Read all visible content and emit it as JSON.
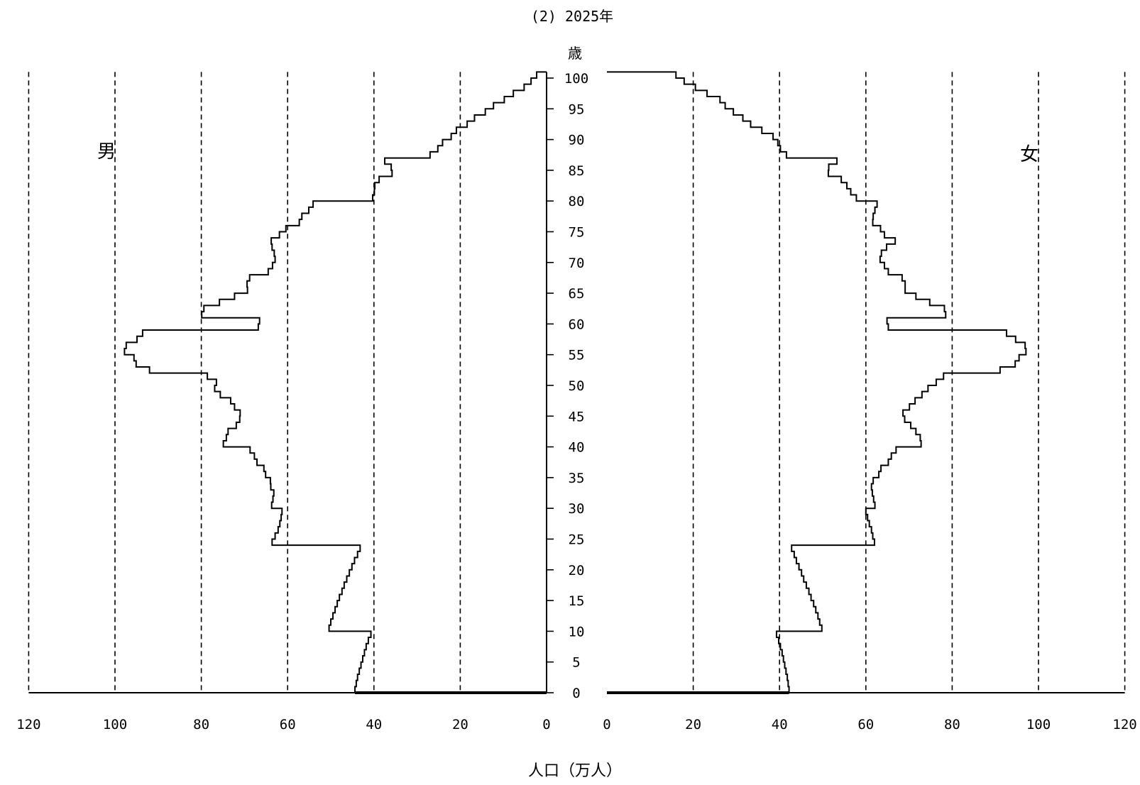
{
  "chart_data": {
    "type": "population-pyramid",
    "title": "(2) 2025年",
    "y_unit_label": "歳",
    "xlabel": "人口（万人）",
    "male_label": "男",
    "female_label": "女",
    "x_range": [
      0,
      120
    ],
    "x_ticks": [
      0,
      20,
      40,
      60,
      80,
      100,
      120
    ],
    "gridlines": [
      20,
      40,
      60,
      80,
      100,
      120
    ],
    "age_range": [
      0,
      101
    ],
    "age_ticks": [
      0,
      5,
      10,
      15,
      20,
      25,
      30,
      35,
      40,
      45,
      50,
      55,
      60,
      65,
      70,
      75,
      80,
      85,
      90,
      95,
      100
    ],
    "ages": [
      0,
      1,
      2,
      3,
      4,
      5,
      6,
      7,
      8,
      9,
      10,
      11,
      12,
      13,
      14,
      15,
      16,
      17,
      18,
      19,
      20,
      21,
      22,
      23,
      24,
      25,
      26,
      27,
      28,
      29,
      30,
      31,
      32,
      33,
      34,
      35,
      36,
      37,
      38,
      39,
      40,
      41,
      42,
      43,
      44,
      45,
      46,
      47,
      48,
      49,
      50,
      51,
      52,
      53,
      54,
      55,
      56,
      57,
      58,
      59,
      60,
      61,
      62,
      63,
      64,
      65,
      66,
      67,
      68,
      69,
      70,
      71,
      72,
      73,
      74,
      75,
      76,
      77,
      78,
      79,
      80,
      81,
      82,
      83,
      84,
      85,
      86,
      87,
      88,
      89,
      90,
      91,
      92,
      93,
      94,
      95,
      96,
      97,
      98,
      99,
      100
    ],
    "series": [
      {
        "name": "男",
        "values": [
          44.4,
          44.1,
          43.8,
          43.4,
          43.0,
          42.6,
          42.2,
          41.8,
          41.3,
          40.7,
          50.4,
          50.0,
          49.5,
          49.0,
          48.5,
          48.0,
          47.4,
          46.9,
          46.3,
          45.7,
          45.1,
          44.5,
          43.8,
          43.2,
          63.6,
          62.9,
          62.2,
          61.8,
          61.5,
          61.3,
          63.7,
          63.4,
          63.2,
          63.9,
          64.0,
          65.1,
          65.5,
          67.1,
          67.7,
          68.7,
          74.9,
          74.2,
          73.8,
          71.9,
          71.1,
          71.0,
          72.3,
          73.2,
          75.6,
          76.9,
          76.5,
          78.6,
          92.0,
          95.1,
          95.6,
          97.8,
          97.4,
          94.9,
          93.6,
          66.8,
          66.5,
          79.9,
          79.4,
          75.8,
          72.3,
          69.3,
          69.4,
          68.8,
          64.5,
          63.5,
          62.9,
          63.1,
          63.6,
          63.8,
          61.9,
          60.4,
          57.3,
          56.7,
          55.1,
          54.1,
          40.3,
          39.9,
          39.8,
          38.8,
          35.8,
          36.0,
          37.5,
          27.0,
          25.2,
          24.1,
          22.1,
          20.9,
          18.4,
          16.7,
          14.2,
          12.3,
          9.8,
          7.7,
          5.2,
          3.6,
          2.3
        ],
        "color": "#000000"
      },
      {
        "name": "女",
        "values": [
          42.2,
          42.0,
          41.8,
          41.5,
          41.2,
          40.9,
          40.6,
          40.2,
          39.8,
          39.3,
          49.8,
          49.3,
          48.9,
          48.4,
          47.9,
          47.3,
          46.8,
          46.2,
          45.6,
          45.1,
          44.5,
          43.9,
          43.4,
          42.8,
          62.0,
          61.6,
          61.3,
          60.8,
          60.4,
          60.0,
          62.1,
          61.8,
          61.5,
          61.3,
          61.7,
          63.0,
          63.5,
          65.2,
          65.9,
          67.0,
          72.8,
          72.6,
          71.6,
          70.4,
          69.0,
          68.6,
          70.1,
          71.4,
          73.0,
          74.4,
          76.3,
          78.0,
          91.1,
          94.6,
          95.5,
          97.1,
          96.9,
          94.7,
          92.6,
          65.2,
          64.9,
          78.5,
          78.2,
          74.8,
          71.6,
          69.1,
          69.1,
          68.4,
          65.2,
          64.3,
          63.3,
          63.6,
          64.8,
          66.8,
          64.3,
          63.4,
          61.6,
          61.7,
          62.1,
          62.6,
          57.8,
          56.5,
          55.6,
          54.3,
          51.3,
          51.4,
          53.3,
          41.6,
          40.2,
          39.6,
          38.5,
          35.9,
          33.3,
          31.5,
          29.3,
          27.4,
          26.2,
          23.2,
          20.5,
          17.9,
          16.0
        ],
        "color": "#000000"
      }
    ],
    "grid": true
  }
}
